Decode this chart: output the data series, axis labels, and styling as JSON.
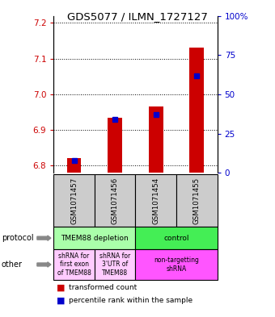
{
  "title": "GDS5077 / ILMN_1727127",
  "samples": [
    "GSM1071457",
    "GSM1071456",
    "GSM1071454",
    "GSM1071455"
  ],
  "transformed_counts": [
    6.82,
    6.935,
    6.965,
    7.13
  ],
  "percentile_ranks": [
    8,
    34,
    37,
    62
  ],
  "ylim_left": [
    6.78,
    7.22
  ],
  "ylim_right": [
    0,
    100
  ],
  "yticks_left": [
    6.8,
    6.9,
    7.0,
    7.1,
    7.2
  ],
  "yticks_right": [
    0,
    25,
    50,
    75,
    100
  ],
  "bar_color_red": "#cc0000",
  "bar_color_blue": "#0000cc",
  "protocol_labels": [
    "TMEM88 depletion",
    "control"
  ],
  "protocol_colors_hex": [
    "#aaffaa",
    "#44ee55"
  ],
  "other_labels": [
    "shRNA for\nfirst exon\nof TMEM88",
    "shRNA for\n3'UTR of\nTMEM88",
    "non-targetting\nshRNA"
  ],
  "other_colors_hex": [
    "#ffccff",
    "#ffccff",
    "#ff55ff"
  ],
  "sample_col_color": "#cccccc",
  "legend_red_label": "transformed count",
  "legend_blue_label": "percentile rank within the sample",
  "protocol_row_label": "protocol",
  "other_row_label": "other"
}
